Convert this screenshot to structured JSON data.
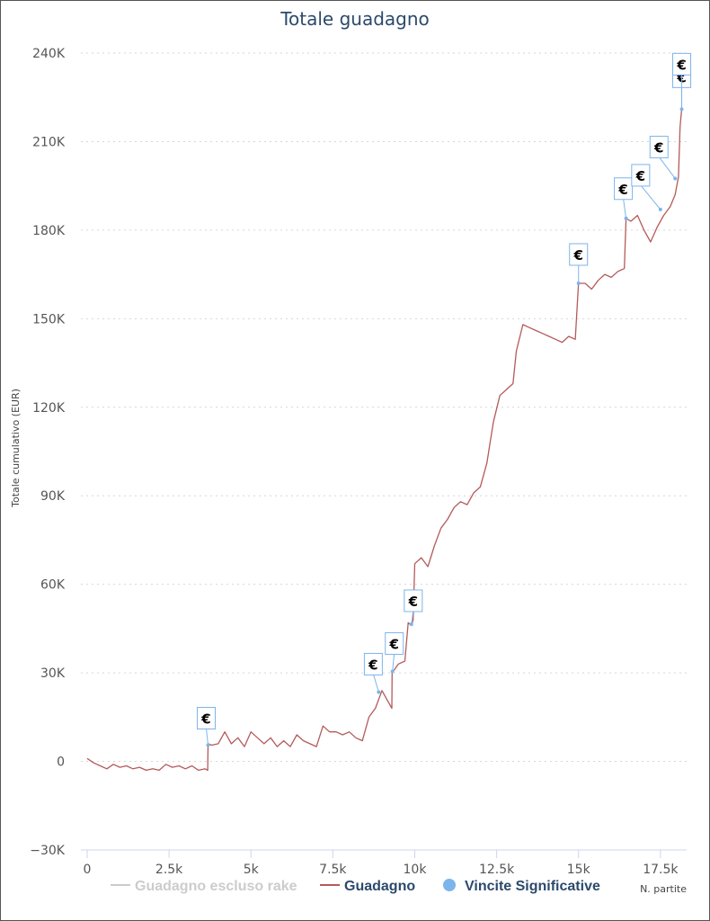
{
  "chart_data": {
    "type": "line",
    "title": "Totale guadagno",
    "ylabel": "Totale cumulativo (EUR)",
    "xlabel": "N. partite",
    "xlim": [
      0,
      18300
    ],
    "ylim": [
      -30000,
      240000
    ],
    "y_ticks": [
      {
        "value": 240000,
        "label": "240K"
      },
      {
        "value": 210000,
        "label": "210K"
      },
      {
        "value": 180000,
        "label": "180K"
      },
      {
        "value": 150000,
        "label": "150K"
      },
      {
        "value": 120000,
        "label": "120K"
      },
      {
        "value": 90000,
        "label": "90K"
      },
      {
        "value": 60000,
        "label": "60K"
      },
      {
        "value": 30000,
        "label": "30K"
      },
      {
        "value": 0,
        "label": "0"
      },
      {
        "value": -30000,
        "label": "−30K"
      }
    ],
    "x_ticks": [
      {
        "value": 0,
        "label": "0"
      },
      {
        "value": 2500,
        "label": "2.5k"
      },
      {
        "value": 5000,
        "label": "5k"
      },
      {
        "value": 7500,
        "label": "7.5k"
      },
      {
        "value": 10000,
        "label": "10k"
      },
      {
        "value": 12500,
        "label": "12.5k"
      },
      {
        "value": 15000,
        "label": "15k"
      },
      {
        "value": 17500,
        "label": "17.5k"
      }
    ],
    "grid": true,
    "legend_position": "bottom",
    "series": [
      {
        "name": "Guadagno escluso rake",
        "color": "#cccccc",
        "hidden": true,
        "x": [],
        "y": []
      },
      {
        "name": "Guadagno",
        "color": "#b55a5a",
        "x": [
          0,
          200,
          400,
          600,
          800,
          1000,
          1200,
          1400,
          1600,
          1800,
          2000,
          2200,
          2400,
          2600,
          2800,
          3000,
          3200,
          3400,
          3600,
          3680,
          3690,
          3800,
          4000,
          4200,
          4400,
          4600,
          4800,
          5000,
          5200,
          5400,
          5600,
          5800,
          6000,
          6200,
          6400,
          6600,
          6800,
          7000,
          7200,
          7400,
          7600,
          7800,
          8000,
          8200,
          8400,
          8600,
          8800,
          9000,
          9200,
          9300,
          9310,
          9500,
          9700,
          9800,
          9900,
          9950,
          10000,
          10200,
          10400,
          10600,
          10800,
          11000,
          11200,
          11400,
          11600,
          11800,
          12000,
          12200,
          12300,
          12400,
          12600,
          12800,
          13000,
          13100,
          13300,
          13500,
          13700,
          13900,
          14100,
          14300,
          14500,
          14700,
          14900,
          15000,
          15200,
          15400,
          15600,
          15800,
          16000,
          16200,
          16400,
          16450,
          16600,
          16800,
          17000,
          17200,
          17400,
          17600,
          17800,
          17950,
          18050,
          18100,
          18150
        ],
        "y": [
          1000,
          -500,
          -1500,
          -2500,
          -1000,
          -2000,
          -1500,
          -2500,
          -2000,
          -3000,
          -2500,
          -3000,
          -1000,
          -2000,
          -1500,
          -2500,
          -1500,
          -3000,
          -2500,
          -3000,
          6000,
          5500,
          6000,
          10000,
          6000,
          8000,
          5000,
          10000,
          8000,
          6000,
          8000,
          5000,
          7000,
          5000,
          9000,
          7000,
          6000,
          5000,
          12000,
          10000,
          10000,
          9000,
          10000,
          8000,
          7000,
          15000,
          18000,
          24000,
          20000,
          18000,
          30000,
          33000,
          34000,
          47000,
          46000,
          48000,
          67000,
          69000,
          66000,
          73000,
          79000,
          82000,
          86000,
          88000,
          87000,
          91000,
          93000,
          101000,
          108000,
          115000,
          124000,
          126000,
          128000,
          139000,
          148000,
          147000,
          146000,
          145000,
          144000,
          143000,
          142000,
          144000,
          143000,
          162000,
          162000,
          160000,
          163000,
          165000,
          164000,
          166000,
          167000,
          184000,
          183000,
          185000,
          180000,
          176000,
          181000,
          185000,
          188000,
          192000,
          198000,
          215000,
          221000
        ]
      },
      {
        "name": "Vincite Significative",
        "color": "#7cb5ec",
        "x": [
          3690,
          8900,
          9320,
          9900,
          15000,
          16450,
          17500,
          17950,
          18150
        ],
        "y": [
          5500,
          23500,
          30500,
          46500,
          162000,
          184000,
          187000,
          197500,
          221000
        ]
      }
    ],
    "flags": [
      {
        "x": 3690,
        "y": 5500,
        "label": "€"
      },
      {
        "x": 8900,
        "y": 23500,
        "label": "€"
      },
      {
        "x": 9320,
        "y": 30500,
        "label": "€"
      },
      {
        "x": 9900,
        "y": 46500,
        "label": "€"
      },
      {
        "x": 15000,
        "y": 162000,
        "label": "€"
      },
      {
        "x": 16450,
        "y": 184000,
        "label": "€"
      },
      {
        "x": 17500,
        "y": 187000,
        "label": "€"
      },
      {
        "x": 17950,
        "y": 197500,
        "label": "€"
      },
      {
        "x": 18150,
        "y": 221000,
        "label": "€"
      },
      {
        "x": 18150,
        "y": 221000,
        "label": "€"
      }
    ]
  }
}
